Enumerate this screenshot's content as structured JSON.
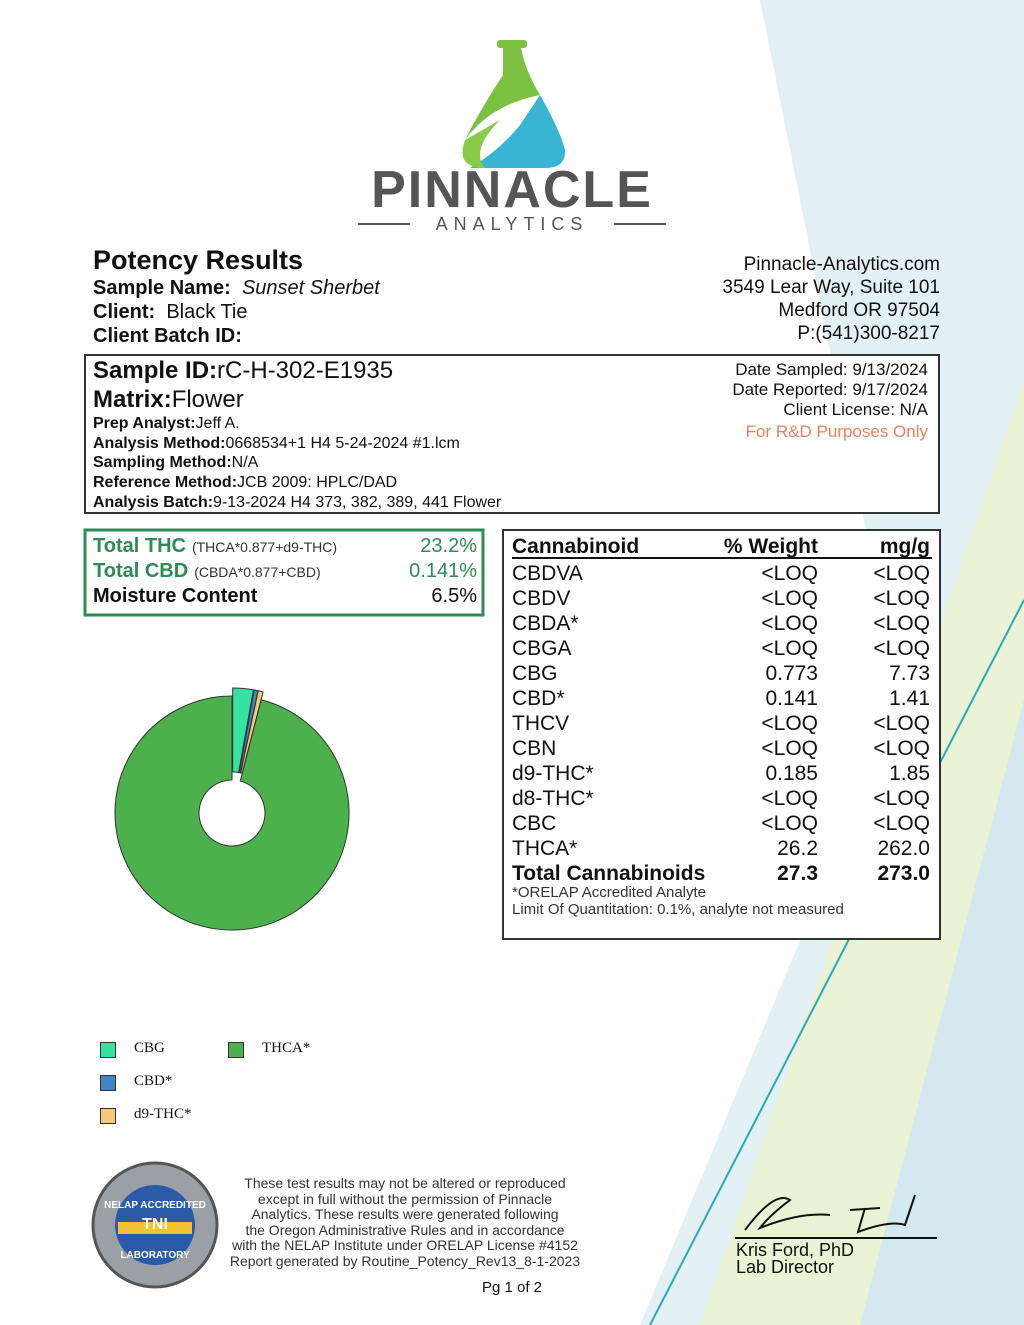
{
  "header": {
    "logo_name": "PINNACLE",
    "logo_sub": "ANALYTICS"
  },
  "report": {
    "title": "Potency Results",
    "sample_name_label": "Sample Name:",
    "sample_name": "Sunset Sherbet",
    "client_label": "Client:",
    "client": "Black Tie",
    "batch_label": "Client Batch ID:"
  },
  "lab": [
    "Pinnacle-Analytics.com",
    "3549 Lear Way, Suite 101",
    "Medford OR 97504",
    "P:(541)300-8217"
  ],
  "sample": {
    "id_label": "Sample ID:",
    "id": "rC-H-302-E1935",
    "matrix_label": "Matrix:",
    "matrix": "Flower",
    "fields": [
      {
        "label": "Prep Analyst:",
        "value": "Jeff A."
      },
      {
        "label": "Analysis Method:",
        "value": "0668534+1 H4 5-24-2024 #1.lcm"
      },
      {
        "label": "Sampling Method:",
        "value": "N/A"
      },
      {
        "label": "Reference Method:",
        "value": "JCB 2009: HPLC/DAD"
      },
      {
        "label": "Analysis Batch:",
        "value": "9-13-2024 H4 373, 382, 389, 441 Flower"
      }
    ],
    "dates": [
      "Date Sampled:  9/13/2024",
      "Date Reported: 9/17/2024",
      "Client License: N/A"
    ],
    "note": "For R&D Purposes Only"
  },
  "summary": [
    {
      "label": "Total THC",
      "formula": "(THCA*0.877+d9-THC)",
      "value": "23.2%"
    },
    {
      "label": "Total CBD",
      "formula": "(CBDA*0.877+CBD)",
      "value": "0.141%"
    },
    {
      "label": "Moisture Content",
      "formula": "",
      "value": "6.5%"
    }
  ],
  "table": {
    "headers": [
      "Cannabinoid",
      "% Weight",
      "mg/g"
    ],
    "rows": [
      [
        "CBDVA",
        "<LOQ",
        "<LOQ"
      ],
      [
        "CBDV",
        "<LOQ",
        "<LOQ"
      ],
      [
        "CBDA*",
        "<LOQ",
        "<LOQ"
      ],
      [
        "CBGA",
        "<LOQ",
        "<LOQ"
      ],
      [
        "CBG",
        "0.773",
        "7.73"
      ],
      [
        "CBD*",
        "0.141",
        "1.41"
      ],
      [
        "THCV",
        "<LOQ",
        "<LOQ"
      ],
      [
        "CBN",
        "<LOQ",
        "<LOQ"
      ],
      [
        "d9-THC*",
        "0.185",
        "1.85"
      ],
      [
        "d8-THC*",
        "<LOQ",
        "<LOQ"
      ],
      [
        "CBC",
        "<LOQ",
        "<LOQ"
      ],
      [
        "THCA*",
        "26.2",
        "262.0"
      ]
    ],
    "total": [
      "Total Cannabinoids",
      "27.3",
      "273.0"
    ],
    "notes": [
      "*ORELAP Accredited Analyte",
      "Limit Of Quantitation: 0.1%, analyte not measured"
    ]
  },
  "chart_data": {
    "type": "donut",
    "categories": [
      "CBG",
      "CBD*",
      "d9-THC*",
      "THCA*"
    ],
    "values": [
      0.773,
      0.141,
      0.185,
      26.2
    ],
    "colors": [
      "#34e3a0",
      "#3f85c8",
      "#f6c87c",
      "#4cb04c"
    ]
  },
  "badge": {
    "top": "NELAP ACCREDITED",
    "center": "TNI",
    "bottom": "LABORATORY"
  },
  "disclaimer": [
    "These test results may not be altered or reproduced",
    "except in full without the permission of Pinnacle",
    "Analytics. These results were generated following",
    "the Oregon Administrative Rules and in accordance",
    "with the NELAP Institute under ORELAP License #4152",
    "Report generated by Routine_Potency_Rev13_8-1-2023"
  ],
  "signature": {
    "name": "Kris Ford, PhD",
    "title": "Lab Director"
  },
  "page": "Pg 1 of 2"
}
